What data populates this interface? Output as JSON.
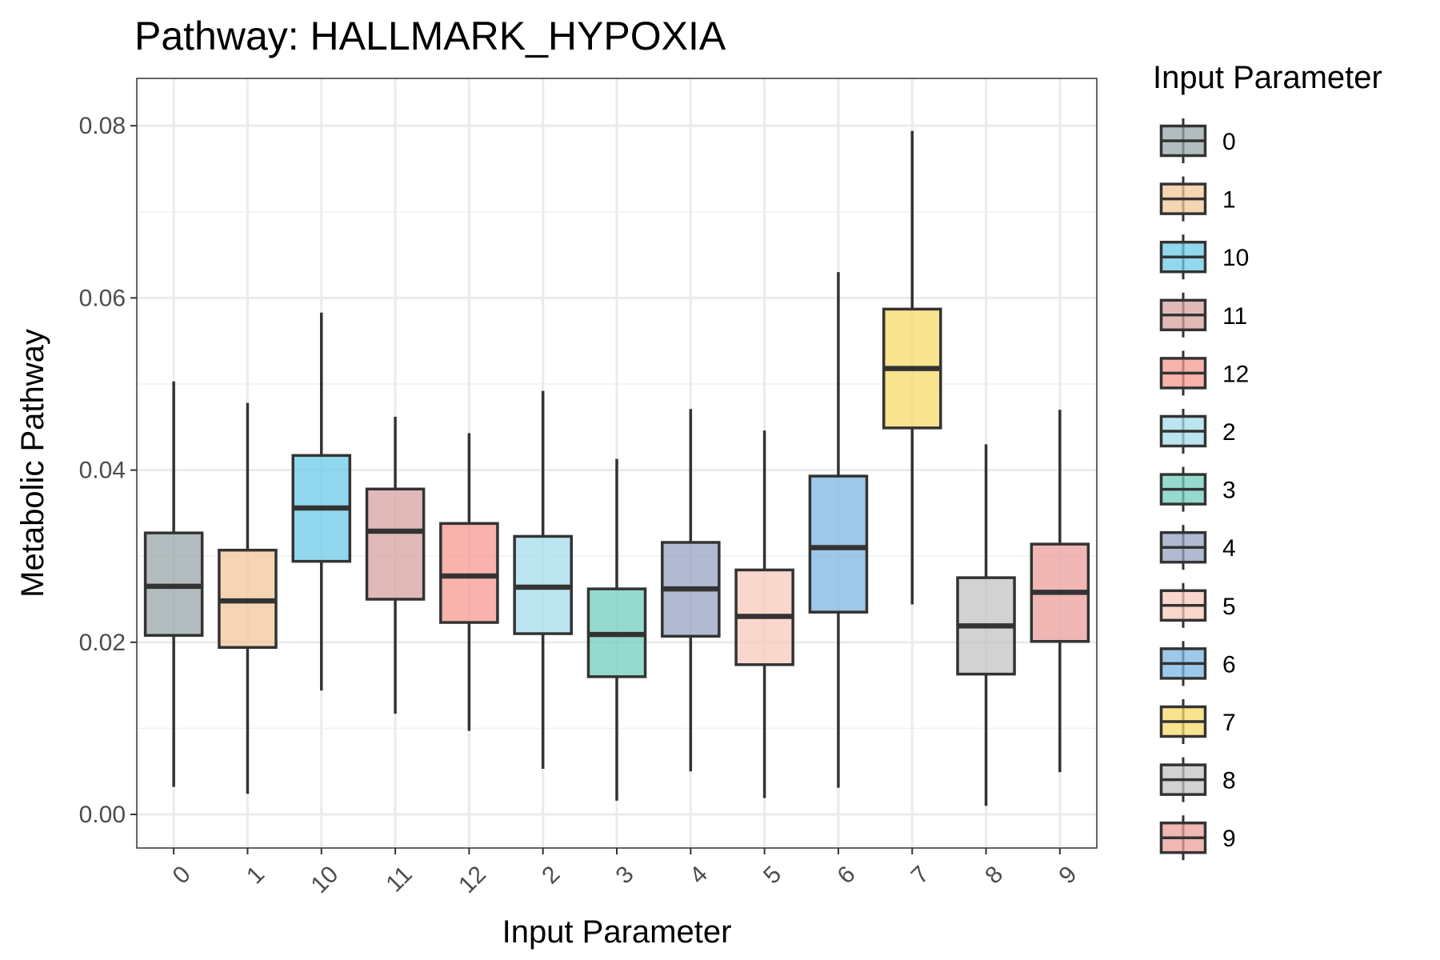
{
  "chart_data": {
    "type": "box",
    "title": "Pathway: HALLMARK_HYPOXIA",
    "xlabel": "Input Parameter",
    "ylabel": "Metabolic Pathway",
    "ylim": [
      -0.0039,
      0.0855
    ],
    "yticks": [
      "0.00",
      "0.02",
      "0.04",
      "0.06",
      "0.08"
    ],
    "ytick_values": [
      0.0,
      0.02,
      0.04,
      0.06,
      0.08
    ],
    "grid": true,
    "legend": {
      "title": "Input Parameter",
      "position": "right"
    },
    "categories": [
      "0",
      "1",
      "10",
      "11",
      "12",
      "2",
      "3",
      "4",
      "5",
      "6",
      "7",
      "8",
      "9"
    ],
    "boxes": [
      {
        "category": "0",
        "whisker_low": 0.0032,
        "q1": 0.0208,
        "median": 0.0265,
        "q3": 0.0327,
        "whisker_high": 0.0503,
        "color": "#9aa5a8"
      },
      {
        "category": "1",
        "whisker_low": 0.0024,
        "q1": 0.0194,
        "median": 0.0248,
        "q3": 0.0307,
        "whisker_high": 0.0478,
        "color": "#f3c79b"
      },
      {
        "category": "10",
        "whisker_low": 0.0144,
        "q1": 0.0294,
        "median": 0.0356,
        "q3": 0.0417,
        "whisker_high": 0.0583,
        "color": "#6ccbe9"
      },
      {
        "category": "11",
        "whisker_low": 0.0117,
        "q1": 0.025,
        "median": 0.0329,
        "q3": 0.0378,
        "whisker_high": 0.0462,
        "color": "#d8a2a2"
      },
      {
        "category": "12",
        "whisker_low": 0.0097,
        "q1": 0.0223,
        "median": 0.0277,
        "q3": 0.0338,
        "whisker_high": 0.0443,
        "color": "#f49a90"
      },
      {
        "category": "2",
        "whisker_low": 0.0053,
        "q1": 0.021,
        "median": 0.0264,
        "q3": 0.0323,
        "whisker_high": 0.0492,
        "color": "#a4dcea"
      },
      {
        "category": "3",
        "whisker_low": 0.0016,
        "q1": 0.016,
        "median": 0.0209,
        "q3": 0.0262,
        "whisker_high": 0.0413,
        "color": "#73cdbe"
      },
      {
        "category": "4",
        "whisker_low": 0.005,
        "q1": 0.0207,
        "median": 0.0262,
        "q3": 0.0316,
        "whisker_high": 0.0471,
        "color": "#97a3c2"
      },
      {
        "category": "5",
        "whisker_low": 0.0019,
        "q1": 0.0174,
        "median": 0.023,
        "q3": 0.0284,
        "whisker_high": 0.0446,
        "color": "#f7c9bc"
      },
      {
        "category": "6",
        "whisker_low": 0.0031,
        "q1": 0.0235,
        "median": 0.031,
        "q3": 0.0393,
        "whisker_high": 0.063,
        "color": "#7cb5e3"
      },
      {
        "category": "7",
        "whisker_low": 0.0244,
        "q1": 0.0449,
        "median": 0.0518,
        "q3": 0.0587,
        "whisker_high": 0.0794,
        "color": "#f6d96a"
      },
      {
        "category": "8",
        "whisker_low": 0.001,
        "q1": 0.0163,
        "median": 0.0219,
        "q3": 0.0275,
        "whisker_high": 0.043,
        "color": "#c3c3c3"
      },
      {
        "category": "9",
        "whisker_low": 0.0049,
        "q1": 0.0201,
        "median": 0.0258,
        "q3": 0.0314,
        "whisker_high": 0.047,
        "color": "#eb9f9c"
      }
    ]
  }
}
